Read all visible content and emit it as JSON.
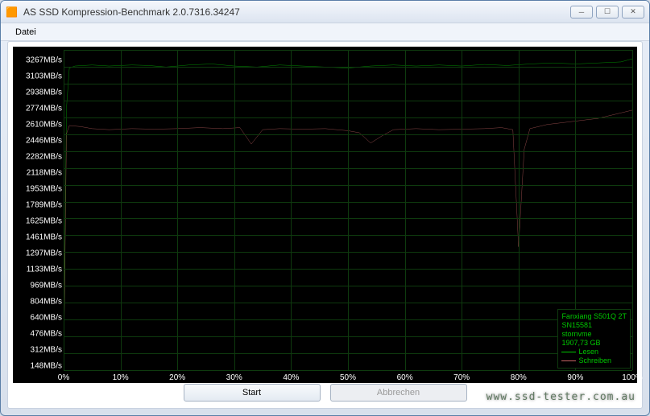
{
  "window": {
    "title": "AS SSD Kompression-Benchmark 2.0.7316.34247"
  },
  "menu": {
    "file": "Datei"
  },
  "chart": {
    "background_color": "#000000",
    "grid_color": "#0e3a0e",
    "axis_text_color": "#ffffff",
    "label_fontsize": 10,
    "y_unit": "MB/s",
    "y_max": 3267,
    "y_min": 148,
    "y_ticks": [
      3267,
      3103,
      2938,
      2774,
      2610,
      2446,
      2282,
      2118,
      1953,
      1789,
      1625,
      1461,
      1297,
      1133,
      969,
      804,
      640,
      476,
      312,
      148
    ],
    "x_ticks": [
      0,
      10,
      20,
      30,
      40,
      50,
      60,
      70,
      80,
      90,
      100
    ],
    "x_unit": "%",
    "series": [
      {
        "name": "Lesen",
        "color": "#00c800",
        "label": "Lesen",
        "points": [
          [
            0,
            148
          ],
          [
            0.5,
            2700
          ],
          [
            1,
            3090
          ],
          [
            2,
            3110
          ],
          [
            5,
            3120
          ],
          [
            8,
            3110
          ],
          [
            12,
            3120
          ],
          [
            15,
            3115
          ],
          [
            18,
            3100
          ],
          [
            22,
            3120
          ],
          [
            26,
            3130
          ],
          [
            30,
            3110
          ],
          [
            34,
            3100
          ],
          [
            38,
            3120
          ],
          [
            42,
            3110
          ],
          [
            46,
            3100
          ],
          [
            50,
            3090
          ],
          [
            54,
            3110
          ],
          [
            58,
            3120
          ],
          [
            62,
            3110
          ],
          [
            66,
            3120
          ],
          [
            70,
            3110
          ],
          [
            74,
            3125
          ],
          [
            78,
            3115
          ],
          [
            82,
            3130
          ],
          [
            86,
            3140
          ],
          [
            90,
            3130
          ],
          [
            94,
            3140
          ],
          [
            98,
            3150
          ],
          [
            100,
            3180
          ]
        ]
      },
      {
        "name": "Schreiben",
        "color": "#c86464",
        "label": "Schreiben",
        "points": [
          [
            0,
            148
          ],
          [
            0.5,
            2450
          ],
          [
            1,
            2530
          ],
          [
            3,
            2520
          ],
          [
            5,
            2500
          ],
          [
            8,
            2490
          ],
          [
            12,
            2500
          ],
          [
            16,
            2495
          ],
          [
            20,
            2500
          ],
          [
            24,
            2510
          ],
          [
            28,
            2500
          ],
          [
            31,
            2510
          ],
          [
            33,
            2350
          ],
          [
            35,
            2490
          ],
          [
            38,
            2500
          ],
          [
            42,
            2495
          ],
          [
            46,
            2500
          ],
          [
            50,
            2480
          ],
          [
            52,
            2460
          ],
          [
            54,
            2360
          ],
          [
            56,
            2430
          ],
          [
            58,
            2490
          ],
          [
            62,
            2500
          ],
          [
            66,
            2490
          ],
          [
            70,
            2495
          ],
          [
            74,
            2500
          ],
          [
            77,
            2510
          ],
          [
            79,
            2490
          ],
          [
            80,
            1350
          ],
          [
            81,
            2300
          ],
          [
            82,
            2500
          ],
          [
            85,
            2540
          ],
          [
            88,
            2560
          ],
          [
            91,
            2580
          ],
          [
            94,
            2600
          ],
          [
            97,
            2640
          ],
          [
            100,
            2680
          ]
        ]
      }
    ],
    "legend": {
      "device_line1": "Fanxiang S501Q 2T",
      "device_line2": "SN15581",
      "device_line3": "stornvme",
      "device_line4": "1907,73 GB",
      "text_color": "#00c800",
      "border_color": "#0e3a0e"
    }
  },
  "buttons": {
    "start": "Start",
    "cancel": "Abbrechen"
  },
  "watermark": "www.ssd-tester.com.au"
}
